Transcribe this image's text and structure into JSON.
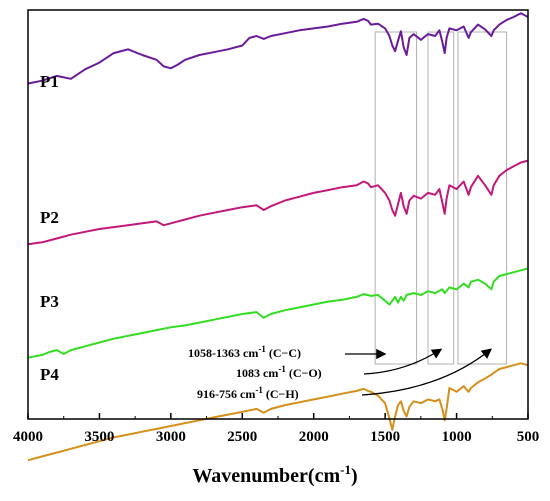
{
  "chart_data": {
    "type": "line",
    "xlabel_main": "Wavenumber(cm",
    "xlabel_sup": "-1",
    "xlabel_tail": ")",
    "ylabel": "",
    "xlim": [
      4000,
      500
    ],
    "x_reversed": true,
    "x_ticks": [
      "4000",
      "3500",
      "3000",
      "2500",
      "2000",
      "1500",
      "1000",
      "500"
    ],
    "x_tick_values": [
      4000,
      3500,
      3000,
      2500,
      2000,
      1500,
      1000,
      500
    ],
    "y_ticks_shown": false,
    "grid": false,
    "legend": "none",
    "y_unit_note": "relative transmittance, offset per series",
    "series": [
      {
        "name": "P1",
        "color": "#6a1b9a",
        "points": [
          [
            4000,
            30
          ],
          [
            3900,
            33
          ],
          [
            3800,
            38
          ],
          [
            3700,
            35
          ],
          [
            3600,
            45
          ],
          [
            3500,
            52
          ],
          [
            3400,
            62
          ],
          [
            3300,
            66
          ],
          [
            3200,
            60
          ],
          [
            3100,
            55
          ],
          [
            3050,
            48
          ],
          [
            3000,
            46
          ],
          [
            2950,
            50
          ],
          [
            2900,
            55
          ],
          [
            2800,
            60
          ],
          [
            2700,
            63
          ],
          [
            2600,
            66
          ],
          [
            2500,
            70
          ],
          [
            2450,
            78
          ],
          [
            2400,
            80
          ],
          [
            2350,
            77
          ],
          [
            2300,
            80
          ],
          [
            2200,
            83
          ],
          [
            2100,
            86
          ],
          [
            2000,
            88
          ],
          [
            1900,
            90
          ],
          [
            1800,
            93
          ],
          [
            1700,
            95
          ],
          [
            1650,
            98
          ],
          [
            1620,
            96
          ],
          [
            1600,
            92
          ],
          [
            1550,
            93
          ],
          [
            1500,
            88
          ],
          [
            1470,
            80
          ],
          [
            1450,
            70
          ],
          [
            1430,
            64
          ],
          [
            1410,
            75
          ],
          [
            1390,
            85
          ],
          [
            1370,
            68
          ],
          [
            1350,
            60
          ],
          [
            1330,
            78
          ],
          [
            1300,
            82
          ],
          [
            1250,
            76
          ],
          [
            1200,
            82
          ],
          [
            1150,
            80
          ],
          [
            1120,
            86
          ],
          [
            1100,
            74
          ],
          [
            1083,
            62
          ],
          [
            1070,
            78
          ],
          [
            1050,
            88
          ],
          [
            1000,
            86
          ],
          [
            950,
            90
          ],
          [
            916,
            78
          ],
          [
            900,
            84
          ],
          [
            850,
            92
          ],
          [
            800,
            87
          ],
          [
            756,
            80
          ],
          [
            740,
            86
          ],
          [
            700,
            92
          ],
          [
            650,
            97
          ],
          [
            600,
            100
          ],
          [
            550,
            104
          ],
          [
            500,
            100
          ]
        ]
      },
      {
        "name": "P2",
        "color": "#c2187a",
        "points": [
          [
            4000,
            4
          ],
          [
            3900,
            6
          ],
          [
            3800,
            10
          ],
          [
            3700,
            14
          ],
          [
            3600,
            17
          ],
          [
            3500,
            20
          ],
          [
            3400,
            22
          ],
          [
            3300,
            24
          ],
          [
            3200,
            26
          ],
          [
            3100,
            28
          ],
          [
            3050,
            24
          ],
          [
            3000,
            26
          ],
          [
            2900,
            30
          ],
          [
            2800,
            34
          ],
          [
            2700,
            37
          ],
          [
            2600,
            40
          ],
          [
            2500,
            43
          ],
          [
            2400,
            45
          ],
          [
            2350,
            40
          ],
          [
            2300,
            44
          ],
          [
            2200,
            50
          ],
          [
            2100,
            54
          ],
          [
            2000,
            58
          ],
          [
            1900,
            61
          ],
          [
            1800,
            64
          ],
          [
            1700,
            66
          ],
          [
            1650,
            70
          ],
          [
            1620,
            68
          ],
          [
            1600,
            64
          ],
          [
            1550,
            66
          ],
          [
            1500,
            58
          ],
          [
            1470,
            50
          ],
          [
            1450,
            40
          ],
          [
            1430,
            34
          ],
          [
            1410,
            46
          ],
          [
            1390,
            58
          ],
          [
            1370,
            44
          ],
          [
            1350,
            36
          ],
          [
            1330,
            50
          ],
          [
            1300,
            55
          ],
          [
            1250,
            52
          ],
          [
            1200,
            58
          ],
          [
            1150,
            56
          ],
          [
            1120,
            62
          ],
          [
            1100,
            48
          ],
          [
            1083,
            36
          ],
          [
            1070,
            52
          ],
          [
            1050,
            66
          ],
          [
            1000,
            62
          ],
          [
            950,
            70
          ],
          [
            916,
            56
          ],
          [
            900,
            64
          ],
          [
            850,
            76
          ],
          [
            800,
            66
          ],
          [
            756,
            56
          ],
          [
            740,
            66
          ],
          [
            700,
            76
          ],
          [
            650,
            82
          ],
          [
            600,
            86
          ],
          [
            550,
            90
          ],
          [
            500,
            92
          ]
        ]
      },
      {
        "name": "P3",
        "color": "#33dd22",
        "points": [
          [
            4000,
            -26
          ],
          [
            3900,
            -23
          ],
          [
            3850,
            -20
          ],
          [
            3800,
            -18
          ],
          [
            3750,
            -22
          ],
          [
            3700,
            -18
          ],
          [
            3600,
            -14
          ],
          [
            3500,
            -10
          ],
          [
            3400,
            -6
          ],
          [
            3300,
            -3
          ],
          [
            3200,
            0
          ],
          [
            3100,
            3
          ],
          [
            3000,
            6
          ],
          [
            2900,
            8
          ],
          [
            2800,
            11
          ],
          [
            2700,
            14
          ],
          [
            2600,
            17
          ],
          [
            2500,
            20
          ],
          [
            2400,
            22
          ],
          [
            2350,
            16
          ],
          [
            2300,
            20
          ],
          [
            2200,
            24
          ],
          [
            2100,
            27
          ],
          [
            2000,
            30
          ],
          [
            1900,
            33
          ],
          [
            1800,
            35
          ],
          [
            1700,
            38
          ],
          [
            1650,
            41
          ],
          [
            1600,
            39
          ],
          [
            1550,
            40
          ],
          [
            1500,
            34
          ],
          [
            1470,
            30
          ],
          [
            1450,
            34
          ],
          [
            1430,
            38
          ],
          [
            1410,
            32
          ],
          [
            1390,
            38
          ],
          [
            1370,
            34
          ],
          [
            1350,
            40
          ],
          [
            1300,
            42
          ],
          [
            1250,
            40
          ],
          [
            1200,
            44
          ],
          [
            1150,
            42
          ],
          [
            1100,
            46
          ],
          [
            1083,
            42
          ],
          [
            1050,
            48
          ],
          [
            1000,
            46
          ],
          [
            950,
            52
          ],
          [
            916,
            48
          ],
          [
            900,
            54
          ],
          [
            850,
            56
          ],
          [
            800,
            52
          ],
          [
            756,
            46
          ],
          [
            740,
            54
          ],
          [
            700,
            60
          ],
          [
            650,
            62
          ],
          [
            600,
            64
          ],
          [
            550,
            66
          ],
          [
            500,
            68
          ]
        ]
      },
      {
        "name": "P4",
        "color": "#d4901a",
        "points": [
          [
            4000,
            -56
          ],
          [
            3900,
            -52
          ],
          [
            3800,
            -48
          ],
          [
            3700,
            -44
          ],
          [
            3600,
            -40
          ],
          [
            3500,
            -36
          ],
          [
            3400,
            -32
          ],
          [
            3300,
            -29
          ],
          [
            3200,
            -26
          ],
          [
            3100,
            -23
          ],
          [
            3000,
            -20
          ],
          [
            2900,
            -17
          ],
          [
            2800,
            -14
          ],
          [
            2700,
            -11
          ],
          [
            2600,
            -8
          ],
          [
            2500,
            -5
          ],
          [
            2400,
            -2
          ],
          [
            2350,
            -6
          ],
          [
            2300,
            -2
          ],
          [
            2200,
            2
          ],
          [
            2100,
            5
          ],
          [
            2000,
            8
          ],
          [
            1900,
            11
          ],
          [
            1800,
            14
          ],
          [
            1700,
            17
          ],
          [
            1650,
            19
          ],
          [
            1620,
            17
          ],
          [
            1600,
            16
          ],
          [
            1550,
            12
          ],
          [
            1500,
            4
          ],
          [
            1470,
            -12
          ],
          [
            1450,
            -24
          ],
          [
            1430,
            -10
          ],
          [
            1410,
            2
          ],
          [
            1390,
            6
          ],
          [
            1370,
            -4
          ],
          [
            1350,
            -10
          ],
          [
            1330,
            0
          ],
          [
            1300,
            6
          ],
          [
            1250,
            4
          ],
          [
            1200,
            8
          ],
          [
            1150,
            6
          ],
          [
            1120,
            8
          ],
          [
            1100,
            -2
          ],
          [
            1083,
            -14
          ],
          [
            1070,
            -2
          ],
          [
            1050,
            20
          ],
          [
            1000,
            16
          ],
          [
            950,
            22
          ],
          [
            916,
            16
          ],
          [
            900,
            20
          ],
          [
            850,
            26
          ],
          [
            800,
            30
          ],
          [
            756,
            34
          ],
          [
            740,
            36
          ],
          [
            700,
            40
          ],
          [
            650,
            42
          ],
          [
            600,
            44
          ],
          [
            550,
            46
          ],
          [
            500,
            44
          ]
        ]
      }
    ],
    "series_labels": [
      "P1",
      "P2",
      "P3",
      "P4"
    ],
    "boxes": [
      {
        "x_from": 1570,
        "x_to": 1280
      },
      {
        "x_from": 1200,
        "x_to": 1020
      },
      {
        "x_from": 990,
        "x_to": 650
      }
    ],
    "annotations": [
      {
        "range": "1058-1363 cm",
        "sup": "-1",
        "group": "(C−C)"
      },
      {
        "range": "1083 cm",
        "sup": "-1",
        "group": "(C−O)"
      },
      {
        "range": "916-756 cm",
        "sup": "-1",
        "group": "(C−H)"
      }
    ]
  }
}
